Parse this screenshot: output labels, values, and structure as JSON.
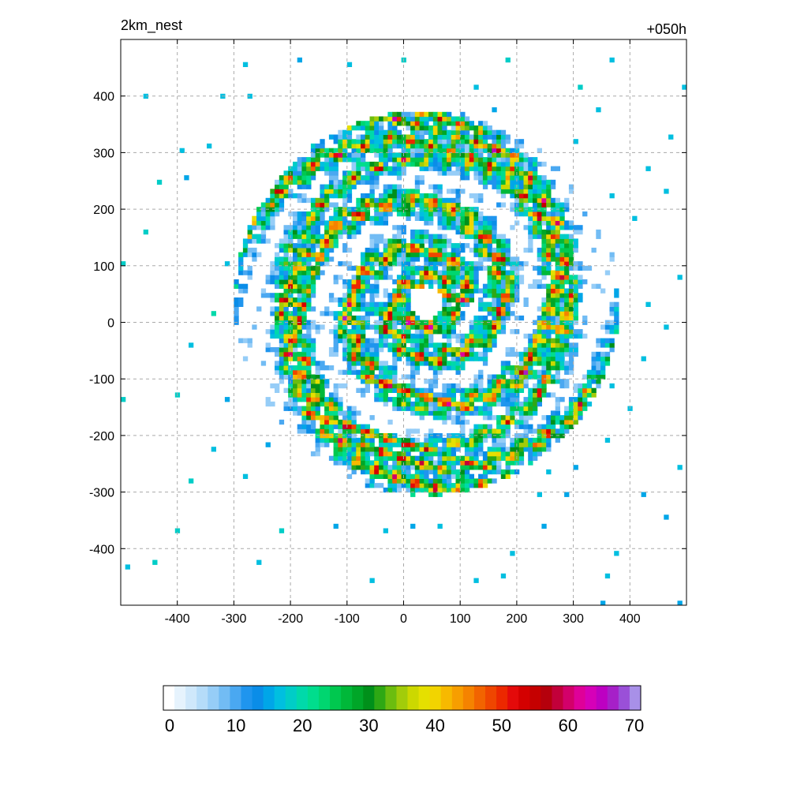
{
  "chart_data": {
    "type": "heatmap",
    "title_left": "2km_nest",
    "title_right": "+050h",
    "xlabel": "",
    "ylabel": "",
    "xlim": [
      -500,
      500
    ],
    "ylim": [
      -500,
      500
    ],
    "xticks": [
      -400,
      -300,
      -200,
      -100,
      0,
      100,
      200,
      300,
      400
    ],
    "yticks": [
      400,
      300,
      200,
      100,
      0,
      -100,
      -200,
      -300,
      -400
    ],
    "grid": true,
    "field": {
      "eye_center": [
        40,
        35
      ],
      "eye_radius": 30,
      "bands": [
        {
          "type": "eyewall",
          "r0": 30,
          "width": 30,
          "peak": 52
        },
        {
          "type": "spiral",
          "r0": 70,
          "growth": 0.065,
          "width": 32,
          "peak": 50
        },
        {
          "type": "spiral",
          "r0": 140,
          "growth": 0.05,
          "width": 28,
          "peak": 47
        },
        {
          "type": "ring",
          "r0": 255,
          "width": 22,
          "peak": 45
        }
      ]
    },
    "colorbar": {
      "min": 0,
      "max": 70,
      "ticks": [
        0,
        10,
        20,
        30,
        40,
        50,
        60,
        70
      ],
      "colors": [
        "#ffffff",
        "#e6f3fd",
        "#cfe8fb",
        "#b5dcf9",
        "#96cdf7",
        "#72bcf4",
        "#4aa8f1",
        "#1f95ee",
        "#0a8de8",
        "#00a6e8",
        "#00bfe0",
        "#00cdc7",
        "#00d9aa",
        "#00dd8d",
        "#00d670",
        "#00c84f",
        "#00b839",
        "#00a628",
        "#00901a",
        "#2ea814",
        "#6cbd0f",
        "#a2cc0a",
        "#ccd800",
        "#e5e000",
        "#f2d400",
        "#f7b900",
        "#f79e00",
        "#f58300",
        "#f26400",
        "#ef4600",
        "#ec2800",
        "#e40a0a",
        "#d40000",
        "#c50000",
        "#b5000c",
        "#c2003a",
        "#d3006a",
        "#df0099",
        "#d600b8",
        "#bd00c2",
        "#a620c8",
        "#9a50d8",
        "#a890e8"
      ]
    }
  }
}
